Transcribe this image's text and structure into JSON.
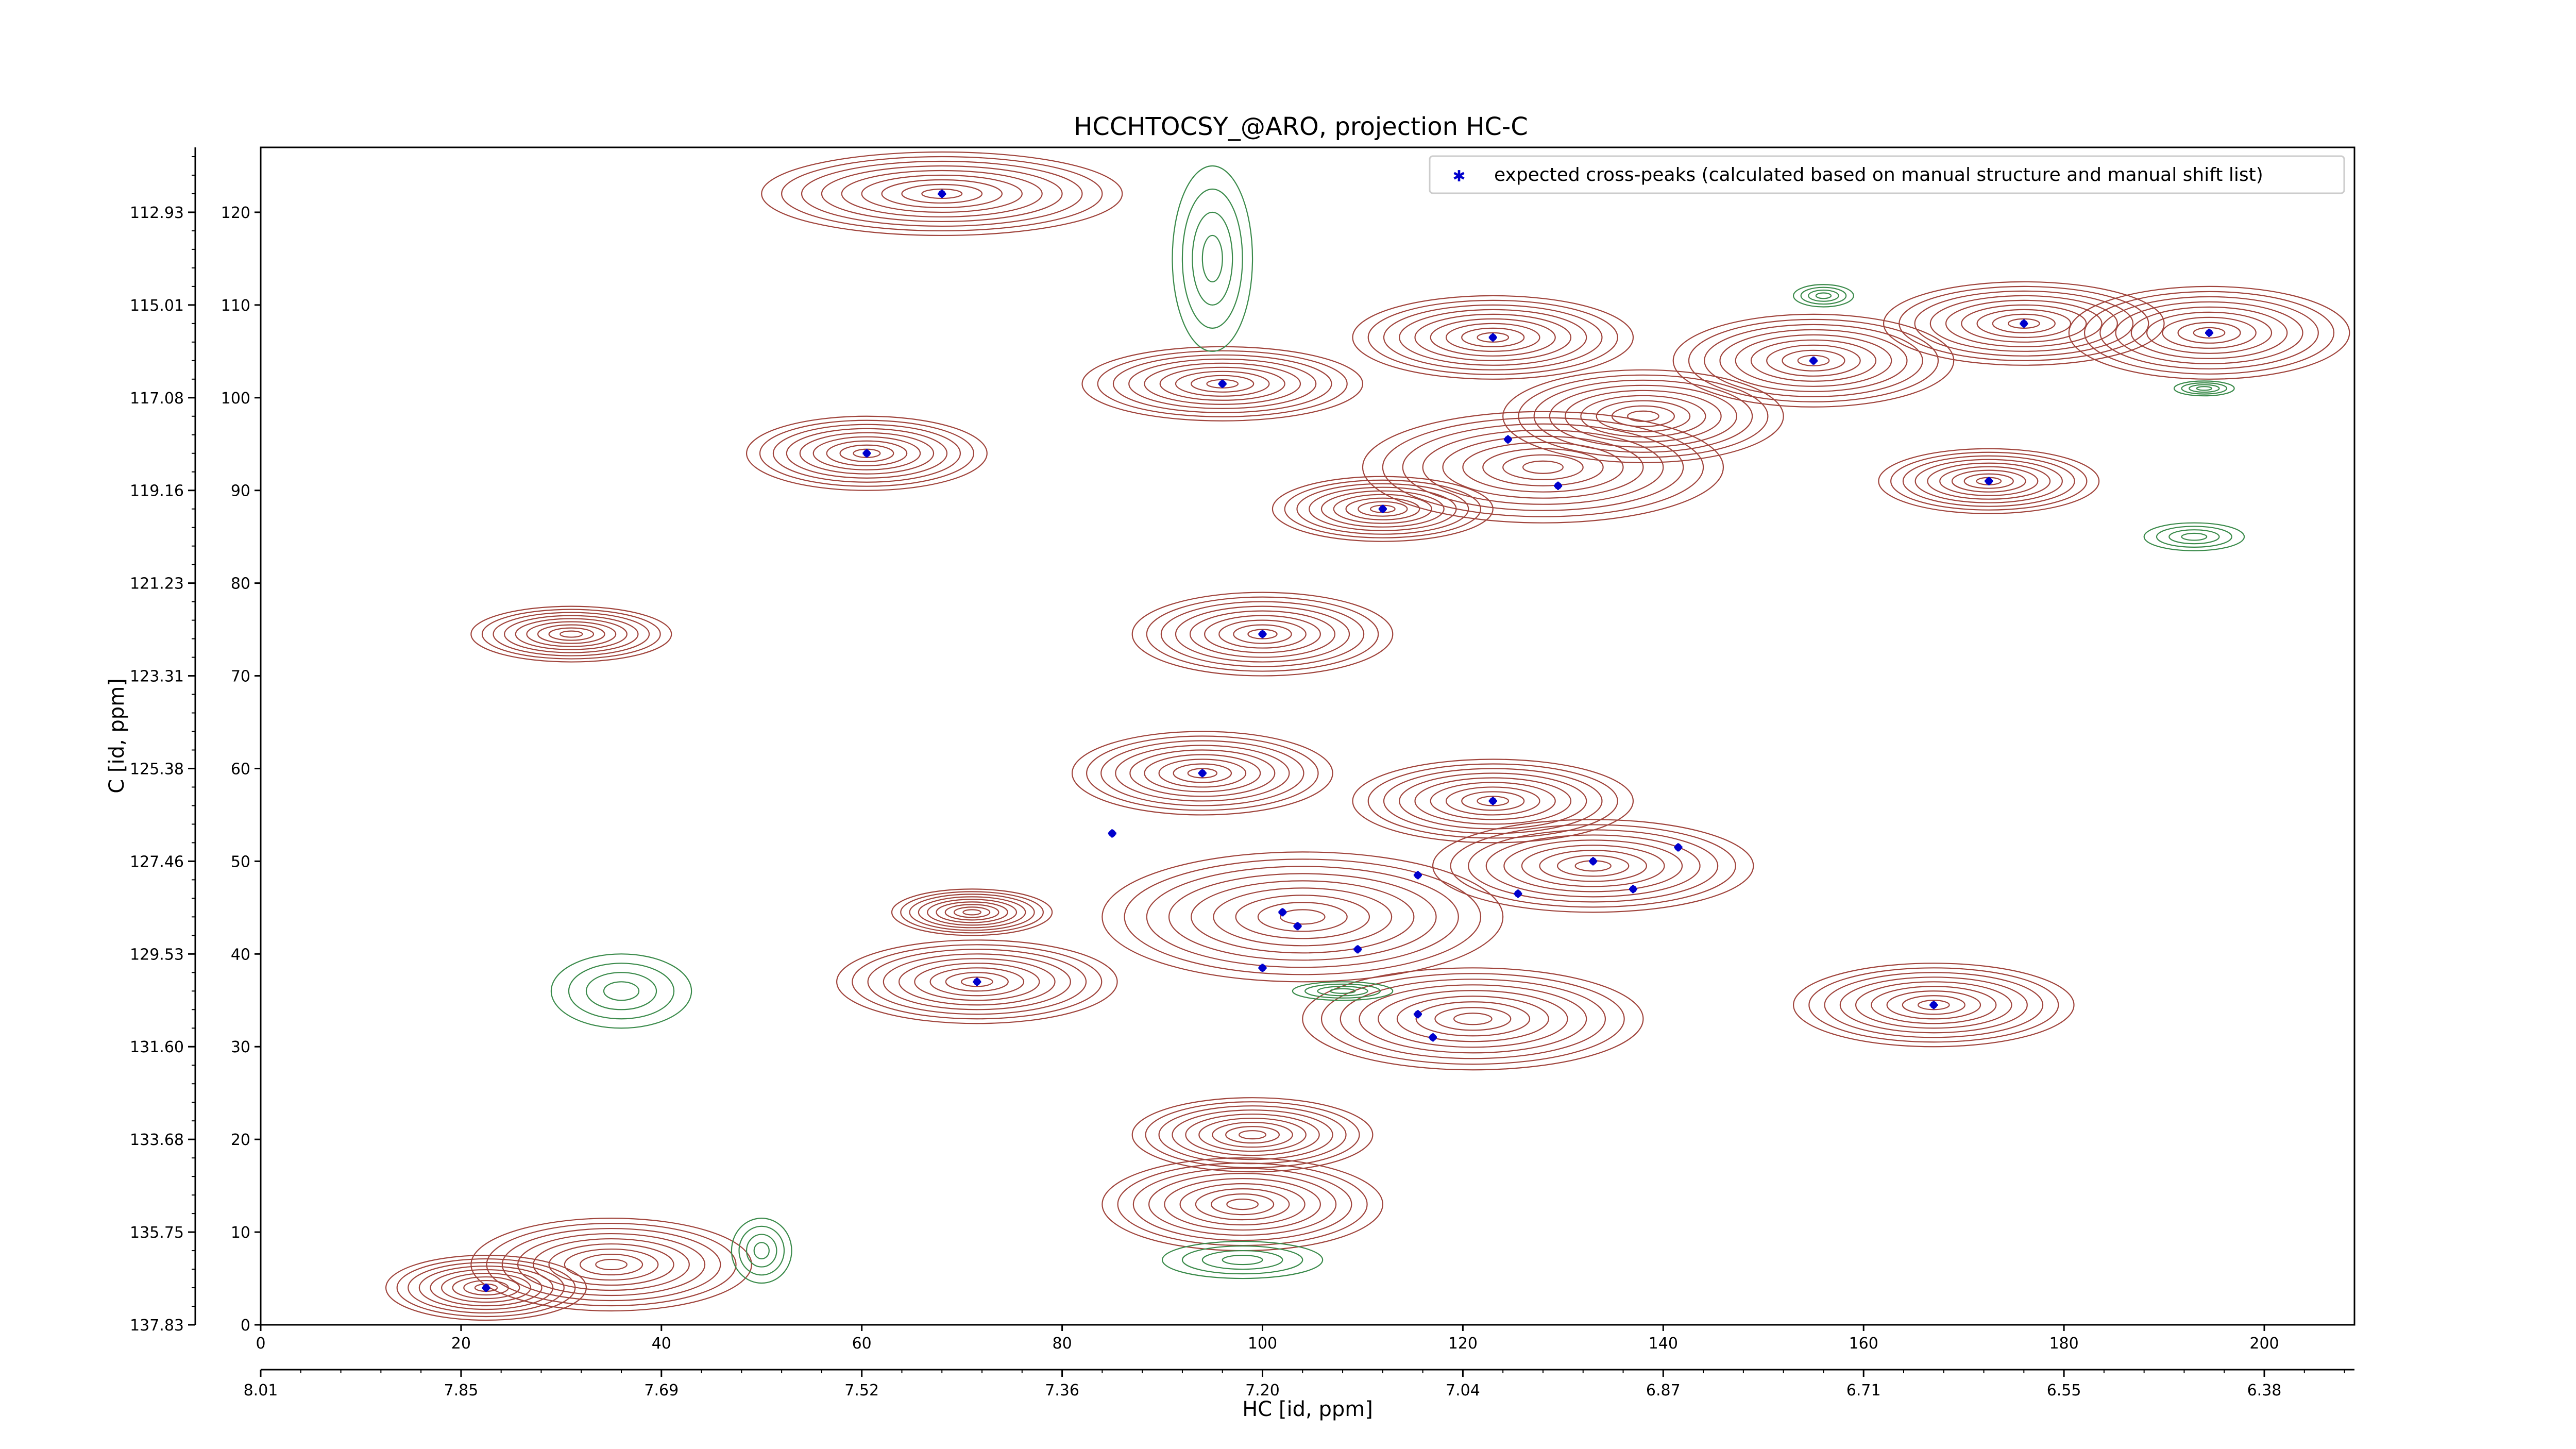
{
  "chart_data": {
    "type": "scatter",
    "title": "HCCHTOCSY_@ARO, projection HC-C",
    "xlabel": "HC [id, ppm]",
    "ylabel": "C [id, ppm]",
    "xlim": [
      0,
      209
    ],
    "ylim": [
      0,
      127
    ],
    "x_ticks": [
      0,
      20,
      40,
      60,
      80,
      100,
      120,
      140,
      160,
      180,
      200
    ],
    "x_ppm_ticks": [
      "8.01",
      "7.85",
      "7.69",
      "7.52",
      "7.36",
      "7.20",
      "7.04",
      "6.87",
      "6.71",
      "6.55",
      "6.38"
    ],
    "y_ticks": [
      0,
      10,
      20,
      30,
      40,
      50,
      60,
      70,
      80,
      90,
      100,
      110,
      120
    ],
    "y_ppm_ticks": [
      "137.83",
      "135.75",
      "133.68",
      "131.60",
      "129.53",
      "127.46",
      "125.38",
      "123.31",
      "121.23",
      "119.16",
      "117.08",
      "115.01",
      "112.93"
    ],
    "legend": {
      "location": "top-right",
      "label": "expected cross-peaks (calculated based on manual structure and manual shift list)"
    },
    "colors": {
      "marker": "#0000cc",
      "positive_contour": "#a0443c",
      "negative_contour": "#3a8a4a",
      "axis": "#000000"
    },
    "series": [
      {
        "name": "expected cross-peaks (calculated based on manual structure and manual shift list)",
        "points": [
          {
            "x": 68,
            "y": 122
          },
          {
            "x": 60.5,
            "y": 94
          },
          {
            "x": 96,
            "y": 101.5
          },
          {
            "x": 123,
            "y": 106.5
          },
          {
            "x": 124.5,
            "y": 95.5
          },
          {
            "x": 129.5,
            "y": 90.5
          },
          {
            "x": 112,
            "y": 88
          },
          {
            "x": 155,
            "y": 104
          },
          {
            "x": 176,
            "y": 108
          },
          {
            "x": 194.5,
            "y": 107
          },
          {
            "x": 172.5,
            "y": 91
          },
          {
            "x": 100,
            "y": 74.5
          },
          {
            "x": 94,
            "y": 59.5
          },
          {
            "x": 123,
            "y": 56.5
          },
          {
            "x": 85,
            "y": 53
          },
          {
            "x": 133,
            "y": 50
          },
          {
            "x": 141.5,
            "y": 51.5
          },
          {
            "x": 115.5,
            "y": 48.5
          },
          {
            "x": 125.5,
            "y": 46.5
          },
          {
            "x": 137,
            "y": 47
          },
          {
            "x": 102,
            "y": 44.5
          },
          {
            "x": 103.5,
            "y": 43
          },
          {
            "x": 109.5,
            "y": 40.5
          },
          {
            "x": 100,
            "y": 38.5
          },
          {
            "x": 71.5,
            "y": 37
          },
          {
            "x": 167,
            "y": 34.5
          },
          {
            "x": 115.5,
            "y": 33.5
          },
          {
            "x": 117,
            "y": 31
          },
          {
            "x": 22.5,
            "y": 4
          }
        ]
      }
    ],
    "contours_positive": [
      {
        "cx": 68,
        "cy": 122,
        "rx": 18,
        "ry": 4.5
      },
      {
        "cx": 60.5,
        "cy": 94,
        "rx": 12,
        "ry": 4
      },
      {
        "cx": 96,
        "cy": 101.5,
        "rx": 14,
        "ry": 4
      },
      {
        "cx": 123,
        "cy": 106.5,
        "rx": 14,
        "ry": 4.5
      },
      {
        "cx": 128,
        "cy": 92.5,
        "rx": 18,
        "ry": 6
      },
      {
        "cx": 138,
        "cy": 98,
        "rx": 14,
        "ry": 5
      },
      {
        "cx": 112,
        "cy": 88,
        "rx": 11,
        "ry": 3.5
      },
      {
        "cx": 155,
        "cy": 104,
        "rx": 14,
        "ry": 5
      },
      {
        "cx": 176,
        "cy": 108,
        "rx": 14,
        "ry": 4.5
      },
      {
        "cx": 194.5,
        "cy": 107,
        "rx": 14,
        "ry": 5
      },
      {
        "cx": 172.5,
        "cy": 91,
        "rx": 11,
        "ry": 3.5
      },
      {
        "cx": 100,
        "cy": 74.5,
        "rx": 13,
        "ry": 4.5
      },
      {
        "cx": 94,
        "cy": 59.5,
        "rx": 13,
        "ry": 4.5
      },
      {
        "cx": 123,
        "cy": 56.5,
        "rx": 14,
        "ry": 4.5
      },
      {
        "cx": 133,
        "cy": 49.5,
        "rx": 16,
        "ry": 5
      },
      {
        "cx": 104,
        "cy": 44,
        "rx": 20,
        "ry": 7
      },
      {
        "cx": 71.5,
        "cy": 37,
        "rx": 14,
        "ry": 4.5
      },
      {
        "cx": 167,
        "cy": 34.5,
        "rx": 14,
        "ry": 4.5
      },
      {
        "cx": 121,
        "cy": 33,
        "rx": 17,
        "ry": 5.5
      },
      {
        "cx": 99,
        "cy": 20.5,
        "rx": 12,
        "ry": 4
      },
      {
        "cx": 98,
        "cy": 13,
        "rx": 14,
        "ry": 5
      },
      {
        "cx": 35,
        "cy": 6.5,
        "rx": 14,
        "ry": 5
      },
      {
        "cx": 22.5,
        "cy": 4,
        "rx": 10,
        "ry": 3.5
      },
      {
        "cx": 31,
        "cy": 74.5,
        "rx": 10,
        "ry": 3
      },
      {
        "cx": 71,
        "cy": 44.5,
        "rx": 8,
        "ry": 2.5
      }
    ],
    "contours_negative": [
      {
        "cx": 36,
        "cy": 36,
        "rx": 7,
        "ry": 4
      },
      {
        "cx": 50,
        "cy": 8,
        "rx": 3,
        "ry": 3.5
      },
      {
        "cx": 98,
        "cy": 7,
        "rx": 8,
        "ry": 2
      },
      {
        "cx": 108,
        "cy": 36,
        "rx": 5,
        "ry": 1
      },
      {
        "cx": 193,
        "cy": 85,
        "rx": 5,
        "ry": 1.5
      },
      {
        "cx": 194,
        "cy": 101,
        "rx": 3,
        "ry": 0.8
      },
      {
        "cx": 156,
        "cy": 111,
        "rx": 3,
        "ry": 1.2
      },
      {
        "cx": 95,
        "cy": 115,
        "rx": 4,
        "ry": 10
      }
    ]
  }
}
